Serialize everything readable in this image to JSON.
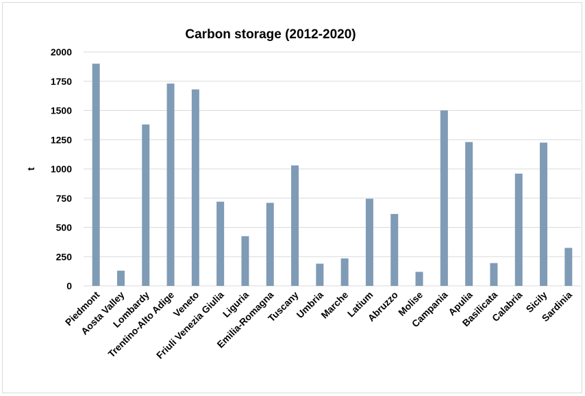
{
  "chart_data": {
    "type": "bar",
    "title": "Carbon storage (2012-2020)",
    "xlabel": "",
    "ylabel": "t",
    "ylim": [
      0,
      2000
    ],
    "yticks": [
      0,
      250,
      500,
      750,
      1000,
      1250,
      1500,
      1750,
      2000
    ],
    "grid": true,
    "legend": "none",
    "bar_color": "#7f9bb6",
    "grid_color": "#d9d9d9",
    "categories": [
      "Piedmont",
      "Aosta Valley",
      "Lombardy",
      "Trentino-Alto Adige",
      "Veneto",
      "Friuli Venezia Giulia",
      "Liguria",
      "Emilia-Romagna",
      "Tuscany",
      "Umbria",
      "Marche",
      "Latium",
      "Abruzzo",
      "Molise",
      "Campania",
      "Apulia",
      "Basilicata",
      "Calabria",
      "Sicily",
      "Sardinia"
    ],
    "values": [
      1900,
      130,
      1380,
      1730,
      1680,
      720,
      425,
      710,
      1030,
      190,
      235,
      745,
      615,
      120,
      1500,
      1230,
      195,
      960,
      1225,
      325
    ]
  }
}
